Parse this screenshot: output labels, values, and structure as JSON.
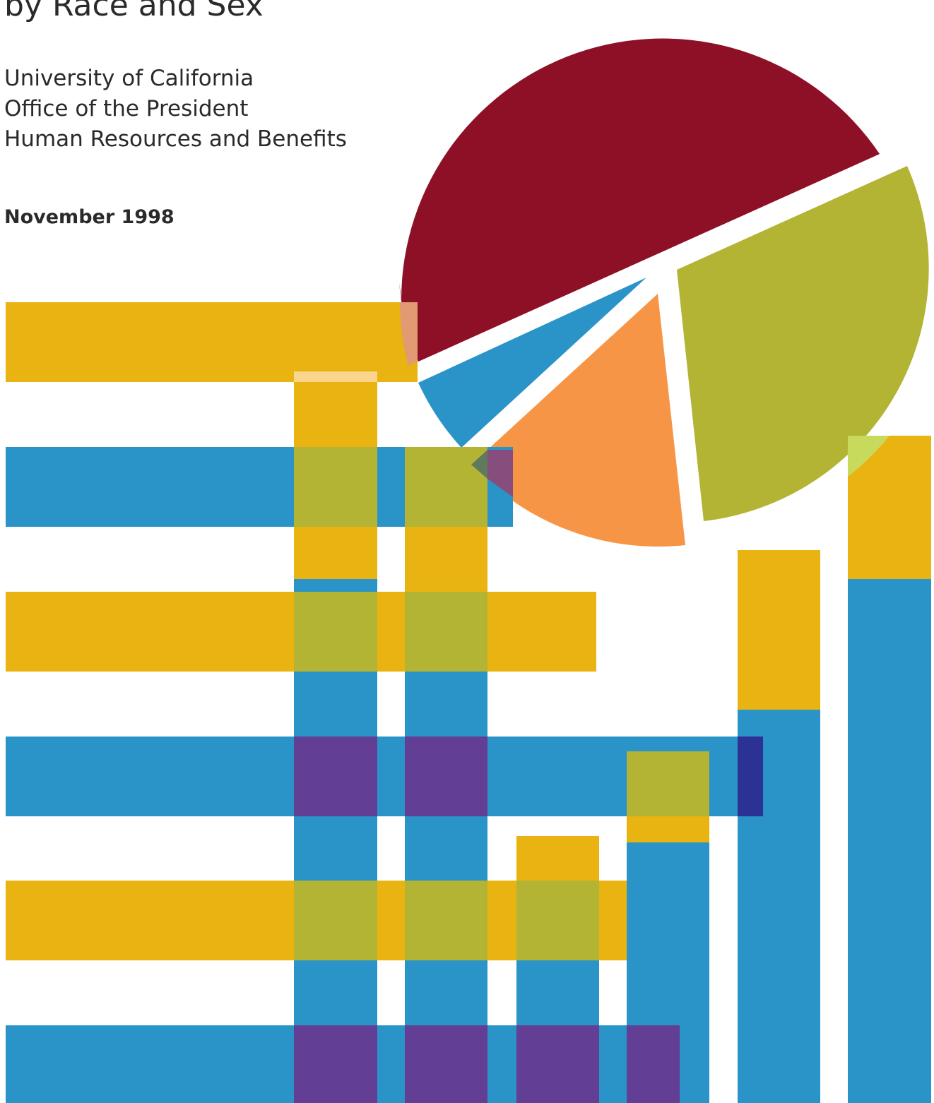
{
  "cover": {
    "title_visible": "by Race and Sex",
    "organization_lines": [
      "University of California",
      "Office of the President",
      "Human Resources and Benefits"
    ],
    "date": "November 1998"
  },
  "colors": {
    "gold": "#E9B311",
    "blue": "#2A93C8",
    "olive": "#B3B334",
    "purple": "#623E95",
    "maroon": "#8E1027",
    "orange": "#F79547",
    "navy": "#2C3293",
    "peach": "#E19A72",
    "pale_gold": "#FBD58D",
    "lime": "#C8DA5C",
    "mauve": "#874E7D",
    "slate": "#5F7A5C"
  }
}
